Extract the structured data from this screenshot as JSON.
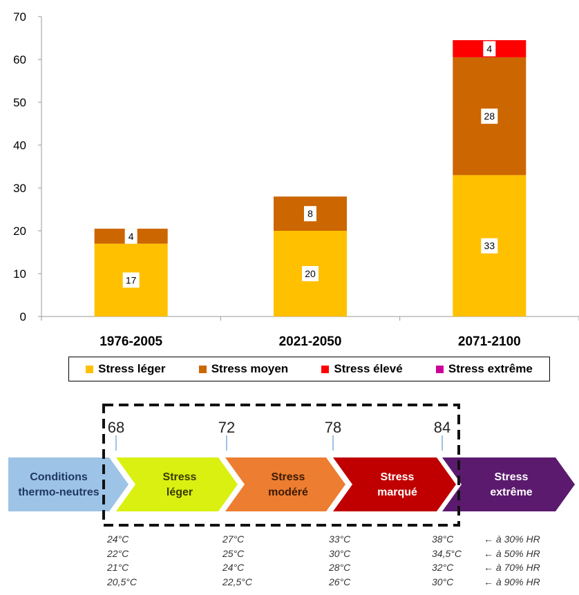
{
  "chart_data": {
    "type": "bar",
    "stacked": true,
    "categories": [
      "1976-2005",
      "2021-2050",
      "2071-2100"
    ],
    "series": [
      {
        "name": "Stress léger",
        "color": "#FFC000",
        "values": [
          17,
          20,
          33
        ],
        "labels": [
          "17",
          "20",
          "33"
        ]
      },
      {
        "name": "Stress moyen",
        "color": "#CC6600",
        "values": [
          3.5,
          8,
          27.5
        ],
        "labels": [
          "4",
          "8",
          "28"
        ]
      },
      {
        "name": "Stress élevé",
        "color": "#FF0000",
        "values": [
          0,
          0,
          4
        ],
        "labels": [
          "",
          "",
          "4"
        ]
      },
      {
        "name": "Stress extrême",
        "color": "#CC0099",
        "values": [
          0,
          0,
          0
        ],
        "labels": [
          "",
          "",
          ""
        ]
      }
    ],
    "ylim": [
      0,
      70
    ],
    "yticks": [
      "0",
      "10",
      "20",
      "30",
      "40",
      "50",
      "60",
      "70"
    ],
    "grid": false,
    "legend_position": "bottom"
  },
  "thi_scale": {
    "thresholds": [
      "68",
      "72",
      "78",
      "84"
    ],
    "stages": [
      {
        "lines": [
          "Conditions",
          "thermo-neutres"
        ],
        "fill": "#9DC3E6",
        "text_color": "#1F3864"
      },
      {
        "lines": [
          "Stress",
          "léger"
        ],
        "fill": "#D9F011",
        "text_color": "#3A3A00"
      },
      {
        "lines": [
          "Stress",
          "modéré"
        ],
        "fill": "#ED7D31",
        "text_color": "#3A1A00"
      },
      {
        "lines": [
          "Stress",
          "marqué"
        ],
        "fill": "#C00000",
        "text_color": "#FFFFFF"
      },
      {
        "lines": [
          "Stress",
          "extrême"
        ],
        "fill": "#5B1A6E",
        "text_color": "#FFFFFF"
      }
    ]
  },
  "temperatures": {
    "columns": [
      [
        "24°C",
        "22°C",
        "21°C",
        "20,5°C"
      ],
      [
        "27°C",
        "25°C",
        "24°C",
        "22,5°C"
      ],
      [
        "33°C",
        "30°C",
        "28°C",
        "26°C"
      ],
      [
        "38°C",
        "34,5°C",
        "32°C",
        "30°C"
      ]
    ],
    "humidity_labels": [
      "← à 30% HR",
      "← à 50% HR",
      "← à 70% HR",
      "← à 90% HR"
    ]
  }
}
